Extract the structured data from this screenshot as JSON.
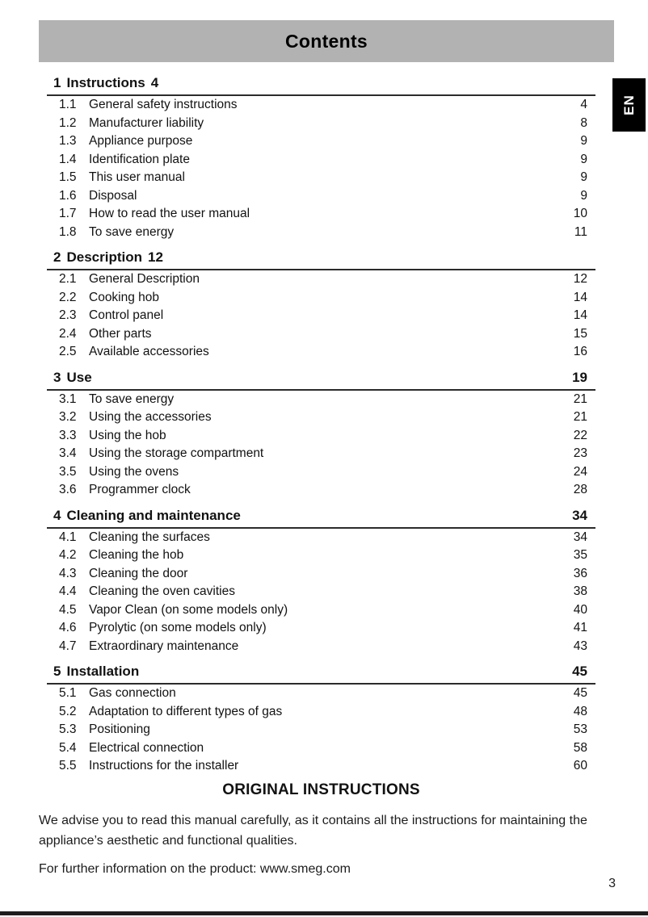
{
  "header": {
    "title": "Contents"
  },
  "language_badge": {
    "label": "EN"
  },
  "toc": {
    "sections": [
      {
        "number": "1",
        "title": "Instructions",
        "page": "4",
        "items": [
          {
            "number": "1.1",
            "title": "General safety instructions",
            "page": "4"
          },
          {
            "number": "1.2",
            "title": "Manufacturer liability",
            "page": "8"
          },
          {
            "number": "1.3",
            "title": "Appliance purpose",
            "page": "9"
          },
          {
            "number": "1.4",
            "title": "Identification plate",
            "page": "9"
          },
          {
            "number": "1.5",
            "title": "This user manual",
            "page": "9"
          },
          {
            "number": "1.6",
            "title": "Disposal",
            "page": "9"
          },
          {
            "number": "1.7",
            "title": "How to read the user manual",
            "page": "10"
          },
          {
            "number": "1.8",
            "title": "To save energy",
            "page": "11"
          }
        ]
      },
      {
        "number": "2",
        "title": "Description",
        "page": "12",
        "items": [
          {
            "number": "2.1",
            "title": "General Description",
            "page": "12"
          },
          {
            "number": "2.2",
            "title": "Cooking hob",
            "page": "14"
          },
          {
            "number": "2.3",
            "title": "Control panel",
            "page": "14"
          },
          {
            "number": "2.4",
            "title": "Other parts",
            "page": "15"
          },
          {
            "number": "2.5",
            "title": "Available accessories",
            "page": "16"
          }
        ]
      },
      {
        "number": "3",
        "title": "Use",
        "page": "19",
        "items": [
          {
            "number": "3.1",
            "title": "To save energy",
            "page": "21"
          },
          {
            "number": "3.2",
            "title": "Using the accessories",
            "page": "21"
          },
          {
            "number": "3.3",
            "title": "Using the hob",
            "page": "22"
          },
          {
            "number": "3.4",
            "title": "Using the storage compartment",
            "page": "23"
          },
          {
            "number": "3.5",
            "title": "Using the ovens",
            "page": "24"
          },
          {
            "number": "3.6",
            "title": "Programmer clock",
            "page": "28"
          }
        ]
      },
      {
        "number": "4",
        "title": "Cleaning and maintenance",
        "page": "34",
        "items": [
          {
            "number": "4.1",
            "title": "Cleaning the surfaces",
            "page": "34"
          },
          {
            "number": "4.2",
            "title": "Cleaning the hob",
            "page": "35"
          },
          {
            "number": "4.3",
            "title": "Cleaning the door",
            "page": "36"
          },
          {
            "number": "4.4",
            "title": "Cleaning the oven cavities",
            "page": "38"
          },
          {
            "number": "4.5",
            "title": "Vapor Clean (on some models only)",
            "page": "40"
          },
          {
            "number": "4.6",
            "title": "Pyrolytic (on some models only)",
            "page": "41"
          },
          {
            "number": "4.7",
            "title": "Extraordinary maintenance",
            "page": "43"
          }
        ]
      },
      {
        "number": "5",
        "title": "Installation",
        "page": "45",
        "items": [
          {
            "number": "5.1",
            "title": "Gas connection",
            "page": "45"
          },
          {
            "number": "5.2",
            "title": "Adaptation to different types of gas",
            "page": "48"
          },
          {
            "number": "5.3",
            "title": "Positioning",
            "page": "53"
          },
          {
            "number": "5.4",
            "title": "Electrical connection",
            "page": "58"
          },
          {
            "number": "5.5",
            "title": "Instructions for the installer",
            "page": "60"
          }
        ]
      }
    ]
  },
  "footer": {
    "original_instructions": "ORIGINAL INSTRUCTIONS",
    "advice": "We advise you to read this manual carefully, as it contains all the instructions for maintaining the appliance’s aesthetic and functional qualities.",
    "more_info": "For further information on the product: www.smeg.com",
    "page_number": "3"
  },
  "colors": {
    "header_bar": "#b2b2b2",
    "badge_background": "#000000",
    "bottom_bar": "#1d1d1d"
  }
}
